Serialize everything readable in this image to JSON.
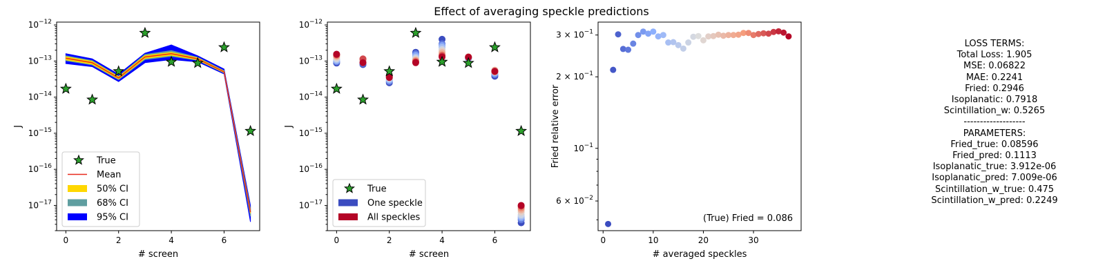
{
  "figure": {
    "suptitle": "Effect of averaging speckle predictions",
    "loss_terms": [
      "LOSS TERMS:",
      "Total Loss: 1.905",
      "MSE: 0.06822",
      "MAE: 0.2241",
      "Fried: 0.2946",
      "Isoplanatic: 0.7918",
      "Scintillation_w: 0.5265",
      "-------------------",
      "PARAMETERS:",
      "Fried_true: 0.08596",
      "Fried_pred: 0.1113",
      "Isoplanatic_true: 3.912e-06",
      "Isoplanatic_pred: 7.009e-06",
      "Scintillation_w_true: 0.475",
      "Scintillation_w_pred: 0.2249"
    ]
  },
  "chart_data": [
    {
      "type": "line",
      "xlabel": "# screen",
      "ylabel": "J",
      "yscale": "log",
      "xlim": [
        -0.35,
        7.35
      ],
      "ylim": [
        2e-18,
        1.2e-12
      ],
      "xticks": [
        0,
        2,
        4,
        6
      ],
      "yticks": [
        {
          "value": 1e-17,
          "mantissa": "10",
          "exp": "−17"
        },
        {
          "value": 1e-16,
          "mantissa": "10",
          "exp": "−16"
        },
        {
          "value": 1e-15,
          "mantissa": "10",
          "exp": "−15"
        },
        {
          "value": 1e-14,
          "mantissa": "10",
          "exp": "−14"
        },
        {
          "value": 1e-13,
          "mantissa": "10",
          "exp": "−13"
        },
        {
          "value": 1e-12,
          "mantissa": "10",
          "exp": "−12"
        }
      ],
      "x": [
        0,
        1,
        2,
        3,
        4,
        5,
        6,
        7
      ],
      "true_values": [
        1.7e-14,
        8.5e-15,
        5.2e-14,
        6e-13,
        9.5e-14,
        8.8e-14,
        2.4e-13,
        1.15e-15
      ],
      "mean": [
        1.2e-13,
        9e-14,
        3.4e-14,
        1.3e-13,
        1.6e-13,
        1.15e-13,
        5e-14,
        6.5e-18
      ],
      "ci50": {
        "lower": [
          1.08e-13,
          8.2e-14,
          3.2e-14,
          1.18e-13,
          1.45e-13,
          1.08e-13,
          4.8e-14,
          6e-18
        ],
        "upper": [
          1.32e-13,
          9.8e-14,
          3.65e-14,
          1.42e-13,
          1.75e-13,
          1.22e-13,
          5.2e-14,
          7.2e-18
        ]
      },
      "ci68": {
        "lower": [
          1.02e-13,
          7.8e-14,
          3.05e-14,
          1.1e-13,
          1.35e-13,
          1.05e-13,
          4.7e-14,
          5e-18
        ],
        "upper": [
          1.4e-13,
          1.03e-13,
          3.8e-14,
          1.52e-13,
          1.95e-13,
          1.27e-13,
          5.4e-14,
          8e-18
        ]
      },
      "ci95": {
        "lower": [
          8.5e-14,
          7e-14,
          2.7e-14,
          9e-14,
          1.1e-13,
          9.5e-14,
          4.4e-14,
          3.5e-18
        ],
        "upper": [
          1.6e-13,
          1.15e-13,
          4.3e-14,
          1.65e-13,
          2.8e-13,
          1.4e-13,
          6e-14,
          1e-17
        ]
      },
      "colors": {
        "true": "#2ca02c",
        "mean": "#e8291c",
        "ci50": "#ffd700",
        "ci68": "#5f9ea0",
        "ci95": "#0000ff"
      },
      "legend": {
        "position": "lower-left",
        "entries": [
          "True",
          "Mean",
          "50% CI",
          "68% CI",
          "95% CI"
        ]
      }
    },
    {
      "type": "scatter",
      "xlabel": "# screen",
      "ylabel": "J",
      "yscale": "log",
      "xlim": [
        -0.35,
        7.35
      ],
      "ylim": [
        2e-18,
        1.2e-12
      ],
      "xticks": [
        0,
        2,
        4,
        6
      ],
      "yticks": [
        {
          "value": 1e-17,
          "mantissa": "10",
          "exp": "−17"
        },
        {
          "value": 1e-16,
          "mantissa": "10",
          "exp": "−16"
        },
        {
          "value": 1e-15,
          "mantissa": "10",
          "exp": "−15"
        },
        {
          "value": 1e-14,
          "mantissa": "10",
          "exp": "−14"
        },
        {
          "value": 1e-13,
          "mantissa": "10",
          "exp": "−13"
        },
        {
          "value": 1e-12,
          "mantissa": "10",
          "exp": "−12"
        }
      ],
      "x": [
        0,
        1,
        2,
        3,
        4,
        5,
        6,
        7
      ],
      "true_values": [
        1.7e-14,
        8.5e-15,
        5.2e-14,
        6e-13,
        9.5e-14,
        8.8e-14,
        2.4e-13,
        1.15e-15
      ],
      "colormap": "coolwarm",
      "predictions": [
        [
          8.8e-14,
          9.5e-14,
          1e-13,
          1.08e-13,
          1.15e-13,
          1.25e-13,
          1.35e-13,
          1.42e-13,
          1.5e-13,
          1.55e-13
        ],
        [
          8e-14,
          8.5e-14,
          9e-14,
          9.5e-14,
          1e-13,
          1.05e-13,
          1.08e-13,
          1.12e-13,
          1.15e-13,
          9e-14
        ],
        [
          2.5e-14,
          2.7e-14,
          2.9e-14,
          3.1e-14,
          3.3e-14,
          3.5e-14,
          3.7e-14,
          3.9e-14,
          4e-14,
          3.5e-14
        ],
        [
          1.75e-13,
          1.6e-13,
          1.45e-13,
          1.3e-13,
          1.2e-13,
          1.1e-13,
          1.05e-13,
          1e-13,
          9.5e-14,
          9e-14
        ],
        [
          4e-13,
          3e-13,
          2.7e-13,
          2.4e-13,
          2.1e-13,
          1.9e-13,
          1.7e-13,
          1.5e-13,
          1.4e-13,
          1.3e-13
        ],
        [
          1.2e-13,
          1.22e-13,
          1.25e-13,
          1.27e-13,
          1.3e-13,
          1.32e-13,
          1.28e-13,
          1.3e-13,
          1.27e-13,
          1.28e-13
        ],
        [
          3.8e-14,
          4.2e-14,
          4.5e-14,
          4.8e-14,
          5e-14,
          5.3e-14,
          5.6e-14,
          5e-14,
          5.2e-14,
          5.2e-14
        ],
        [
          3.3e-18,
          4e-18,
          4.5e-18,
          5e-18,
          5.5e-18,
          6.5e-18,
          7.5e-18,
          8.5e-18,
          9.5e-18,
          1e-17
        ]
      ],
      "colors": {
        "true": "#2ca02c",
        "one": "#3b4cc0",
        "all": "#b40426"
      },
      "legend": {
        "position": "lower-left",
        "entries": [
          "True",
          "One speckle",
          "All speckles"
        ]
      }
    },
    {
      "type": "scatter",
      "xlabel": "# averaged speckles",
      "ylabel": "Fried relative error",
      "yscale": "log",
      "xlim": [
        -1,
        39.5
      ],
      "ylim": [
        0.045,
        0.34
      ],
      "xticks": [
        0,
        10,
        20,
        30
      ],
      "yticks": [
        {
          "value": 0.06,
          "mantissa": "6 × 10",
          "exp": "−2"
        },
        {
          "value": 0.1,
          "mantissa": "10",
          "exp": "−1"
        },
        {
          "value": 0.2,
          "mantissa": "2 × 10",
          "exp": "−1"
        },
        {
          "value": 0.3,
          "mantissa": "3 × 10",
          "exp": "−1"
        }
      ],
      "minor_yticks": [
        0.05,
        0.07,
        0.08,
        0.09
      ],
      "colormap": "coolwarm",
      "x": [
        1,
        2,
        3,
        4,
        5,
        6,
        7,
        8,
        9,
        10,
        11,
        12,
        13,
        14,
        15,
        16,
        17,
        18,
        19,
        20,
        21,
        22,
        23,
        24,
        25,
        26,
        27,
        28,
        29,
        30,
        31,
        32,
        33,
        34,
        35,
        36,
        37
      ],
      "y": [
        0.048,
        0.214,
        0.302,
        0.262,
        0.26,
        0.276,
        0.3,
        0.31,
        0.304,
        0.31,
        0.296,
        0.3,
        0.279,
        0.28,
        0.272,
        0.263,
        0.279,
        0.295,
        0.297,
        0.285,
        0.296,
        0.297,
        0.301,
        0.298,
        0.3,
        0.3,
        0.301,
        0.306,
        0.306,
        0.3,
        0.303,
        0.305,
        0.304,
        0.309,
        0.311,
        0.307,
        0.296
      ],
      "annotation": "(True) Fried = 0.086"
    }
  ]
}
